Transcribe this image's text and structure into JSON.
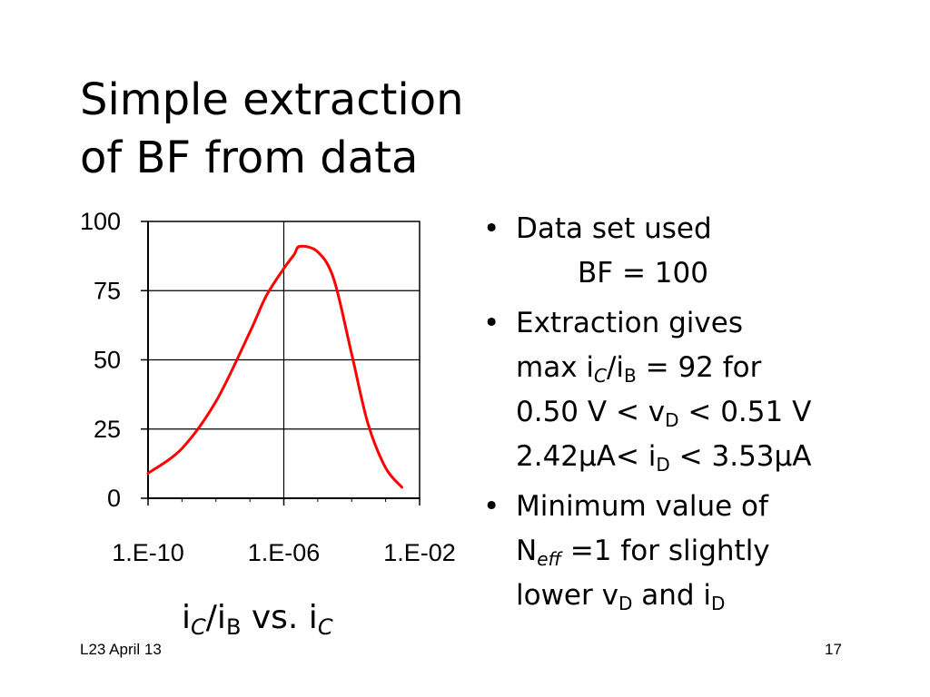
{
  "slide": {
    "title_line1": "Simple extraction",
    "title_line2": "of BF from data",
    "footer_left": "L23 April 13",
    "page_number": "17"
  },
  "caption": {
    "i": "i",
    "C": "C",
    "slash": "/",
    "B": "B",
    "vs": " vs. "
  },
  "bullets": {
    "b1_line1": "Data set used",
    "b1_line2": "BF = 100",
    "b2_line1": "Extraction gives",
    "b2_max": "max i",
    "b2_C": "C",
    "b2_slash": "/i",
    "b2_B": "B",
    "b2_eq": " = 92 for",
    "b2_v_pre": "0.50 V < v",
    "b2_D": "D",
    "b2_v_post": " < 0.51 V",
    "b2_i_pre": "2.42μA< i",
    "b2_i_post": " < 3.53μA",
    "b3_line1": "Minimum value of",
    "b3_N": "N",
    "b3_eff": "eff",
    "b3_rest": " =1 for slightly",
    "b3_lower": "lower v",
    "b3_and": " and i"
  },
  "chart_data": {
    "type": "line",
    "title": "",
    "xlabel": "",
    "ylabel": "",
    "x_scale": "log10",
    "xlim": [
      1e-10,
      0.01
    ],
    "ylim": [
      0,
      100
    ],
    "x_ticks": [
      1e-10,
      1e-06,
      0.01
    ],
    "x_tick_labels": [
      "1.E-10",
      "1.E-06",
      "1.E-02"
    ],
    "y_ticks": [
      0,
      25,
      50,
      75,
      100
    ],
    "y_tick_labels": [
      "0",
      "25",
      "50",
      "75",
      "100"
    ],
    "grid": true,
    "legend": "none",
    "series": [
      {
        "color": "#ff0000",
        "x": [
          1e-10,
          1e-09,
          1e-08,
          1e-07,
          3e-07,
          1e-06,
          2e-06,
          3e-06,
          1e-05,
          3e-05,
          0.0001,
          0.0003,
          0.001,
          0.003
        ],
        "y": [
          9,
          18,
          35,
          60,
          73,
          83,
          88,
          91,
          89,
          79,
          52,
          27,
          11,
          4
        ]
      }
    ]
  }
}
